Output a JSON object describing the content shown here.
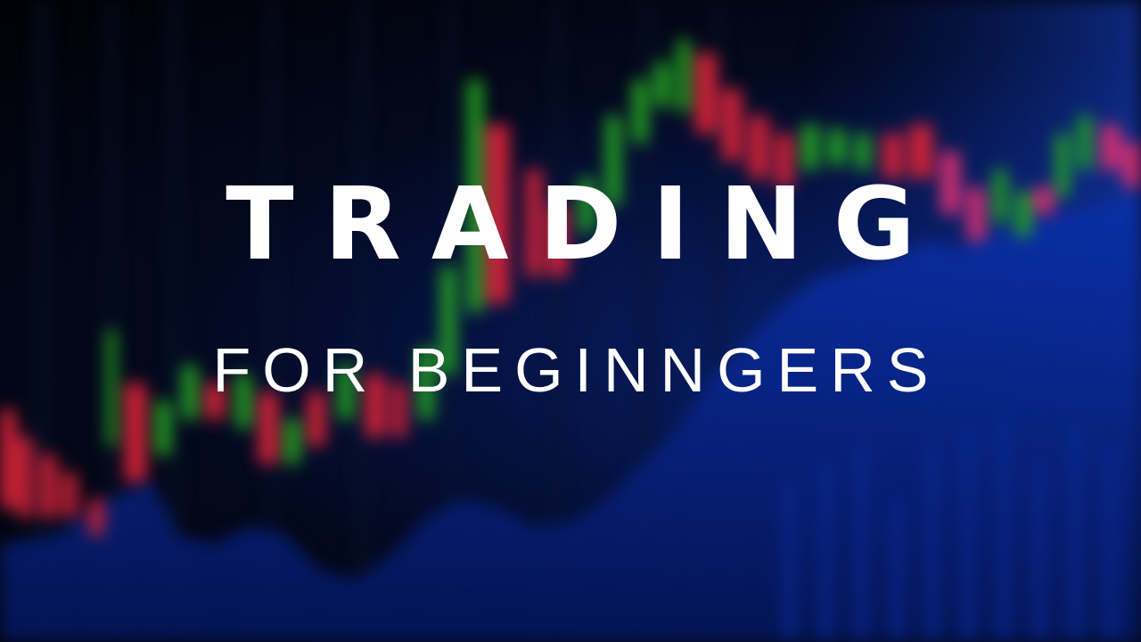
{
  "thumbnail": {
    "title": "TRADING",
    "subtitle": "FOR BEGINNGERS"
  },
  "colors": {
    "bullish": "#2fd02a",
    "bearish": "#ff2a45",
    "pink": "#ff3a8c",
    "volume_blue": "#0a2f9e",
    "text": "#ffffff"
  }
}
